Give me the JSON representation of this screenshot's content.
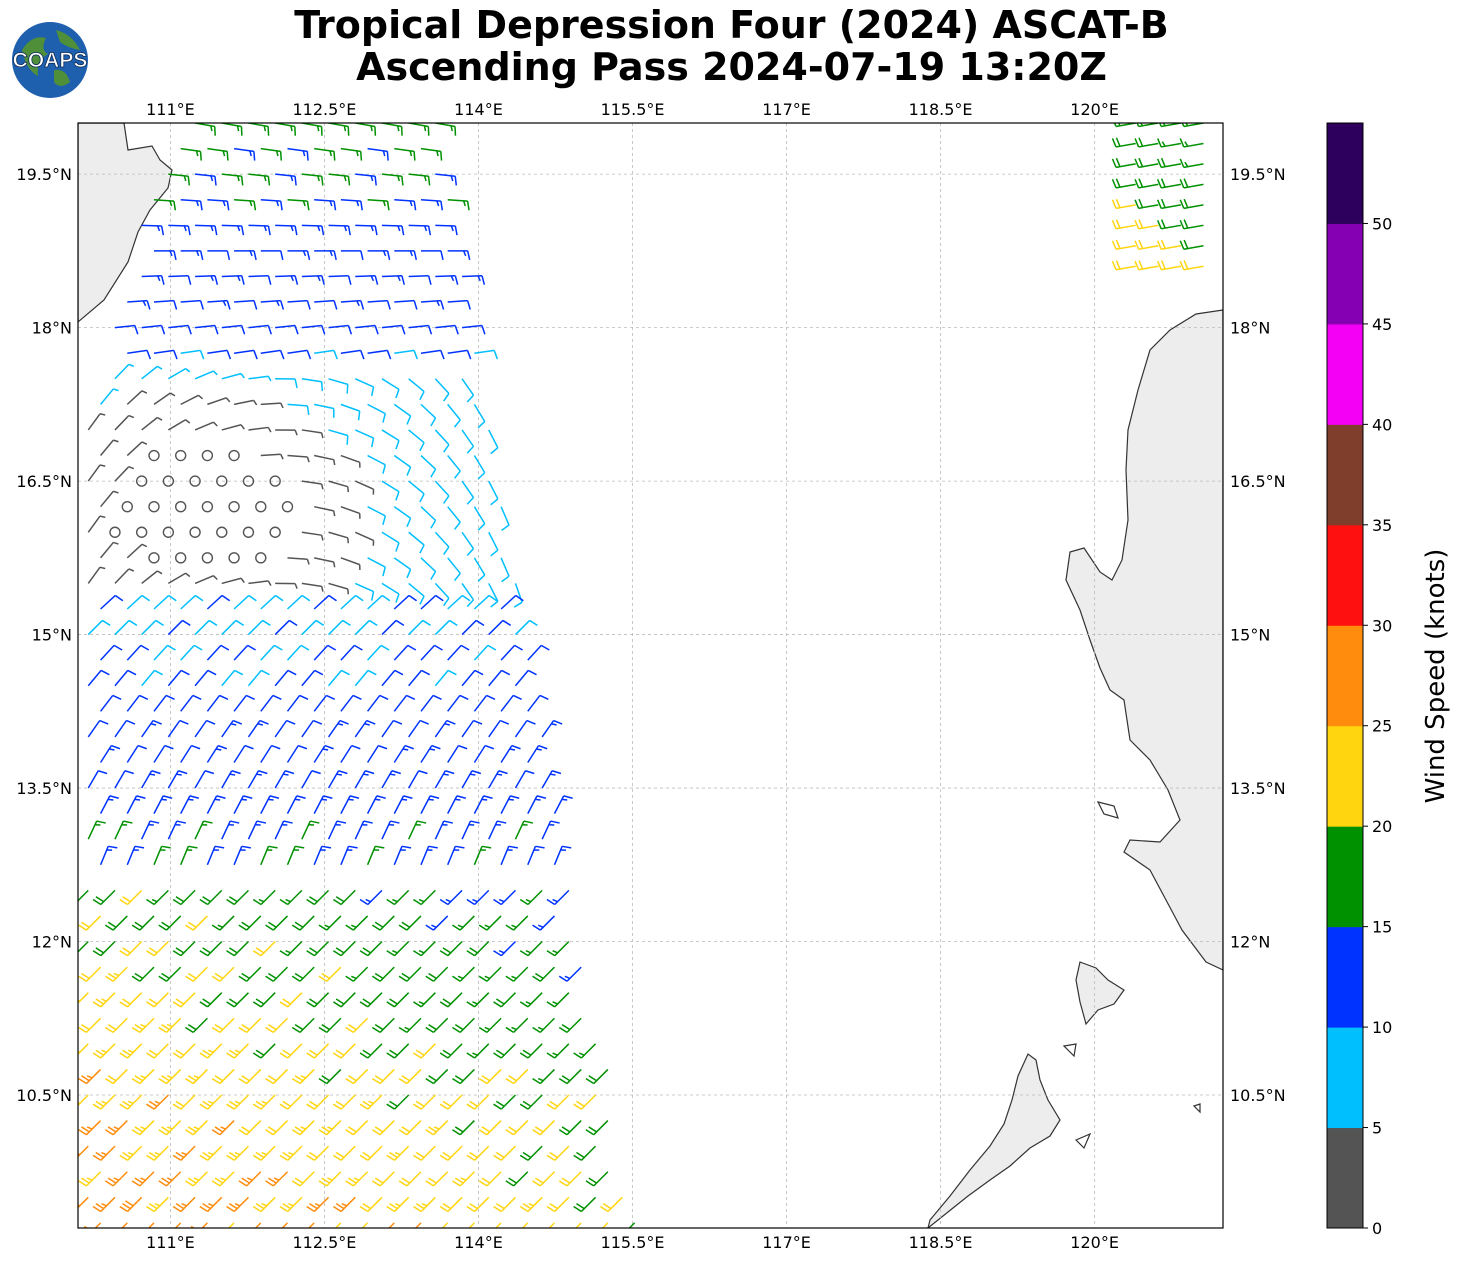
{
  "title": {
    "line1": "Tropical Depression Four (2024) ASCAT-B",
    "line2": "Ascending Pass 2024-07-19 13:20Z"
  },
  "logo": {
    "text": "COAPS",
    "icon": "globe-logo-icon"
  },
  "map": {
    "lon_range": [
      110.1,
      121.25
    ],
    "lat_range": [
      9.2,
      20.0
    ],
    "lon_ticks": [
      {
        "value": 111.0,
        "label": "111°E"
      },
      {
        "value": 112.5,
        "label": "112.5°E"
      },
      {
        "value": 114.0,
        "label": "114°E"
      },
      {
        "value": 115.5,
        "label": "115.5°E"
      },
      {
        "value": 117.0,
        "label": "117°E"
      },
      {
        "value": 118.5,
        "label": "118.5°E"
      },
      {
        "value": 120.0,
        "label": "120°E"
      }
    ],
    "lat_ticks": [
      {
        "value": 19.5,
        "label": "19.5°N"
      },
      {
        "value": 18.0,
        "label": "18°N"
      },
      {
        "value": 16.5,
        "label": "16.5°N"
      },
      {
        "value": 15.0,
        "label": "15°N"
      },
      {
        "value": 13.5,
        "label": "13.5°N"
      },
      {
        "value": 12.0,
        "label": "12°N"
      },
      {
        "value": 10.5,
        "label": "10.5°N"
      }
    ],
    "grid": true,
    "land_color": "#e8e8e8",
    "coast_color": "#333333"
  },
  "colorbar": {
    "label": "Wind Speed (knots)",
    "bins": [
      {
        "min": 0,
        "max": 5,
        "color": "#545454"
      },
      {
        "min": 5,
        "max": 10,
        "color": "#00bfff"
      },
      {
        "min": 10,
        "max": 15,
        "color": "#0033ff"
      },
      {
        "min": 15,
        "max": 20,
        "color": "#009100"
      },
      {
        "min": 20,
        "max": 25,
        "color": "#ffd510"
      },
      {
        "min": 25,
        "max": 30,
        "color": "#ff8c0c"
      },
      {
        "min": 30,
        "max": 35,
        "color": "#ff1010"
      },
      {
        "min": 35,
        "max": 40,
        "color": "#7f3d2b"
      },
      {
        "min": 40,
        "max": 45,
        "color": "#f400f4"
      },
      {
        "min": 45,
        "max": 50,
        "color": "#8600b3"
      },
      {
        "min": 50,
        "max": 55,
        "color": "#2e005e"
      }
    ],
    "tick_labels": [
      "0",
      "5",
      "10",
      "15",
      "20",
      "25",
      "30",
      "35",
      "40",
      "45",
      "50"
    ]
  }
}
